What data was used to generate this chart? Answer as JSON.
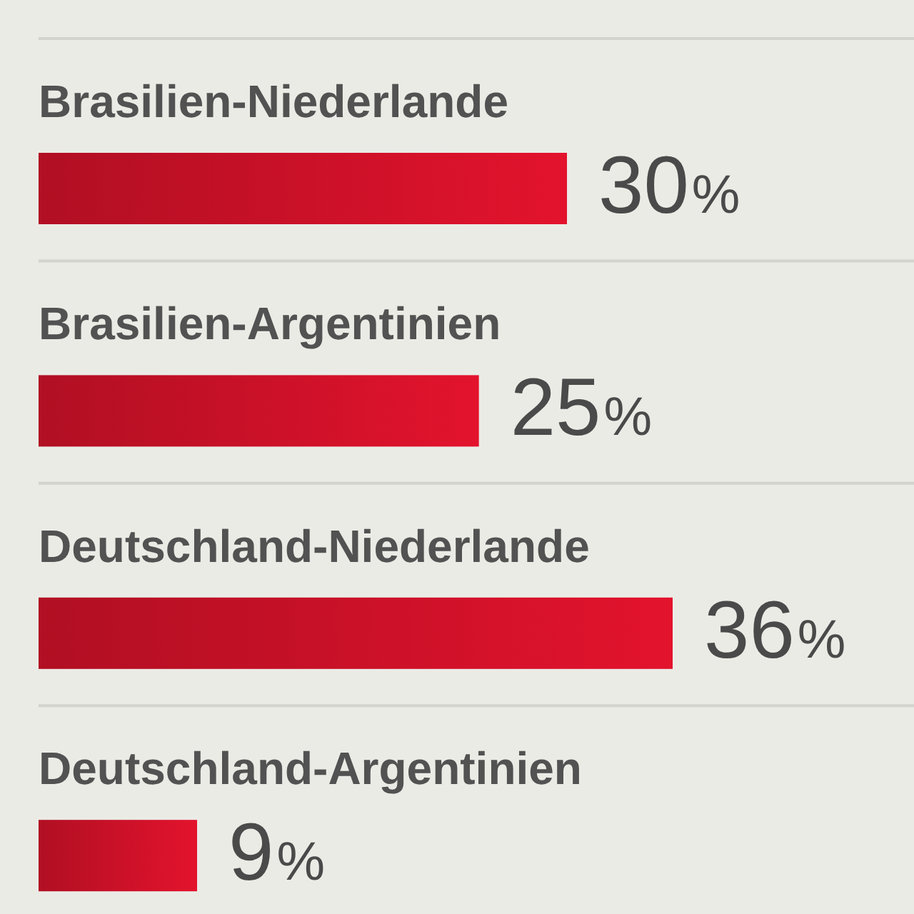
{
  "chart_data": {
    "type": "bar",
    "orientation": "horizontal",
    "categories": [
      "Brasilien-Niederlande",
      "Brasilien-Argentinien",
      "Deutschland-Niederlande",
      "Deutschland-Argentinien"
    ],
    "values": [
      30,
      25,
      36,
      9
    ],
    "value_labels": [
      "30%",
      "25%",
      "36%",
      "9%"
    ],
    "color": "#cc1128",
    "grid": "y"
  }
}
